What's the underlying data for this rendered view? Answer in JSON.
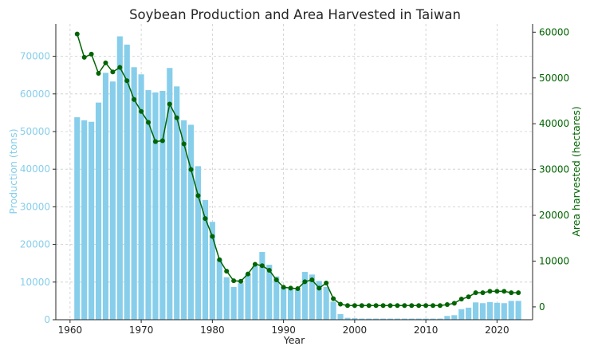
{
  "chart_data": {
    "type": "bar+line",
    "title": "Soybean Production and Area Harvested in Taiwan",
    "xlabel": "Year",
    "ylabel_left": "Production (tons)",
    "ylabel_right": "Area harvested (hectares)",
    "xlim": [
      1958,
      2025
    ],
    "x_ticks": [
      1960,
      1970,
      1980,
      1990,
      2000,
      2010,
      2020
    ],
    "ylim_left": [
      0,
      78600
    ],
    "y_ticks_left": [
      0,
      10000,
      20000,
      30000,
      40000,
      50000,
      60000,
      70000
    ],
    "ylim_right": [
      -2800,
      61800
    ],
    "y_ticks_right": [
      0,
      10000,
      20000,
      30000,
      40000,
      50000,
      60000
    ],
    "grid": true,
    "colors": {
      "bars": "#87ceeb",
      "line": "#006400",
      "left_axis": "#87ceeb",
      "right_axis": "#006400"
    },
    "x": [
      1961,
      1962,
      1963,
      1964,
      1965,
      1966,
      1967,
      1968,
      1969,
      1970,
      1971,
      1972,
      1973,
      1974,
      1975,
      1976,
      1977,
      1978,
      1979,
      1980,
      1981,
      1982,
      1983,
      1984,
      1985,
      1986,
      1987,
      1988,
      1989,
      1990,
      1991,
      1992,
      1993,
      1994,
      1995,
      1996,
      1997,
      1998,
      1999,
      2000,
      2001,
      2002,
      2003,
      2004,
      2005,
      2006,
      2007,
      2008,
      2009,
      2010,
      2011,
      2012,
      2013,
      2014,
      2015,
      2016,
      2017,
      2018,
      2019,
      2020,
      2021,
      2022,
      2023
    ],
    "series": [
      {
        "name": "Production (tons)",
        "kind": "bar",
        "axis": "left",
        "values": [
          53800,
          53000,
          52600,
          57700,
          65600,
          63300,
          75300,
          73100,
          67100,
          65200,
          61000,
          60400,
          60800,
          66900,
          62000,
          53000,
          51800,
          40800,
          31800,
          26000,
          16000,
          11300,
          8700,
          9700,
          12200,
          14200,
          18000,
          14600,
          11500,
          8700,
          8100,
          8000,
          12700,
          12000,
          10300,
          8700,
          4800,
          1500,
          500,
          400,
          300,
          300,
          300,
          300,
          300,
          300,
          300,
          300,
          300,
          300,
          300,
          300,
          1000,
          1200,
          2800,
          3200,
          4600,
          4400,
          4700,
          4500,
          4400,
          5000,
          5000
        ]
      },
      {
        "name": "Area harvested (hectares)",
        "kind": "line",
        "axis": "right",
        "values": [
          59600,
          54500,
          55200,
          51000,
          53300,
          51300,
          52300,
          49400,
          45300,
          42700,
          40300,
          36100,
          36300,
          44300,
          41300,
          35600,
          30000,
          24300,
          19300,
          15400,
          10300,
          7800,
          5700,
          5600,
          7200,
          9300,
          9000,
          8000,
          5900,
          4300,
          4100,
          4000,
          5500,
          5900,
          4100,
          5200,
          1800,
          600,
          300,
          300,
          300,
          300,
          300,
          300,
          300,
          300,
          300,
          300,
          300,
          300,
          300,
          300,
          500,
          800,
          1700,
          2200,
          3100,
          3100,
          3400,
          3400,
          3400,
          3100,
          3100
        ]
      }
    ]
  }
}
